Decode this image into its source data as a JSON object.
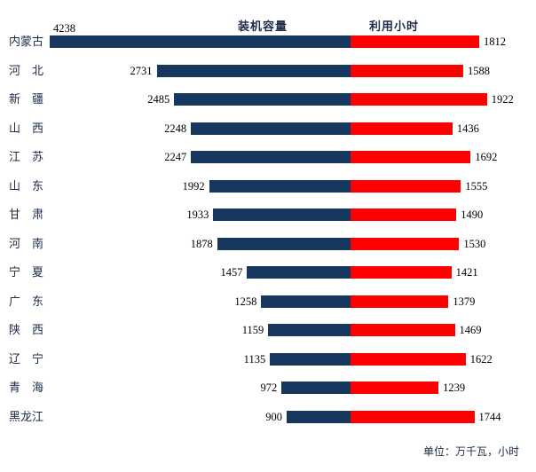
{
  "header": {
    "left_series_label": "装机容量",
    "right_series_label": "利用小时"
  },
  "footer": {
    "unit_note": "单位：万千瓦，小时"
  },
  "chart_data": {
    "type": "bar",
    "subtype": "diverging-horizontal",
    "title": "",
    "categories": [
      "内蒙古",
      "河北",
      "新疆",
      "山西",
      "江苏",
      "山东",
      "甘肃",
      "河南",
      "宁夏",
      "广东",
      "陕西",
      "辽宁",
      "青海",
      "黑龙江"
    ],
    "series": [
      {
        "name": "装机容量",
        "side": "left",
        "color": "#17375e",
        "values": [
          4238,
          2731,
          2485,
          2248,
          2247,
          1992,
          1933,
          1878,
          1457,
          1258,
          1159,
          1135,
          972,
          900
        ]
      },
      {
        "name": "利用小时",
        "side": "right",
        "color": "#fe0000",
        "values": [
          1812,
          1588,
          1922,
          1436,
          1692,
          1555,
          1490,
          1530,
          1421,
          1379,
          1469,
          1622,
          1239,
          1744
        ]
      }
    ],
    "unit_note": "单位：万千瓦，小时",
    "value_labels_shown": true,
    "grid": false,
    "legend_position": "top-center-as-headers",
    "left_axis_max": 4238,
    "right_axis_max": 1922
  }
}
